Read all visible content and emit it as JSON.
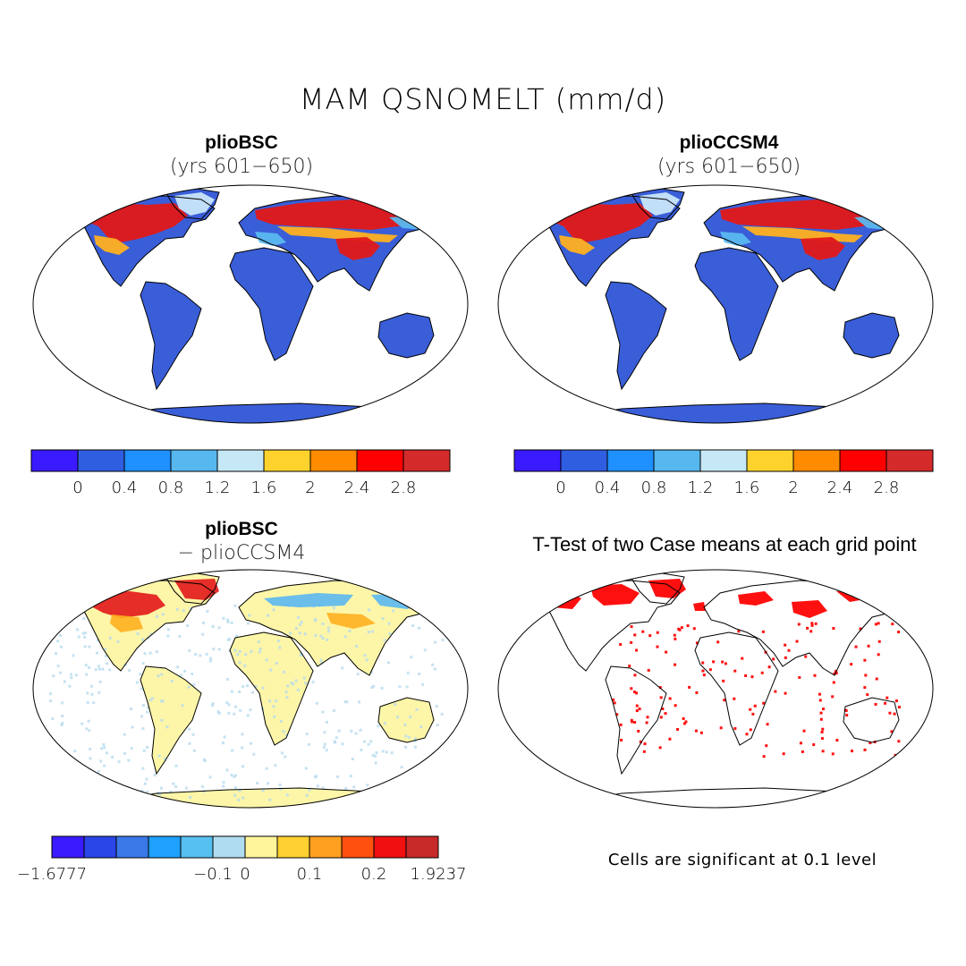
{
  "figure": {
    "title": "MAM QSNOMELT (mm/d)",
    "significance_note": "Cells are significant at 0.1 level"
  },
  "panels": [
    {
      "id": "top-left",
      "title": "plioBSC",
      "subtitle": "(yrs 601−650)",
      "kind": "absolute"
    },
    {
      "id": "top-right",
      "title": "plioCCSM4",
      "subtitle": "(yrs 601−650)",
      "kind": "absolute"
    },
    {
      "id": "bottom-left",
      "title": "plioBSC",
      "subtitle": "− plioCCSM4",
      "kind": "difference"
    },
    {
      "id": "bottom-right",
      "title": "T-Test of two Case means at each grid point",
      "subtitle": "",
      "kind": "ttest"
    }
  ],
  "colorbars": {
    "absolute": {
      "colors": [
        "#3a1aff",
        "#2f5ee0",
        "#1e90ff",
        "#56b8ee",
        "#c6e8f6",
        "#fdd22c",
        "#ff8c00",
        "#ff0000",
        "#d42a2a"
      ],
      "labels": [
        "0",
        "0.4",
        "0.8",
        "1.2",
        "1.6",
        "2",
        "2.4",
        "2.8"
      ]
    },
    "difference": {
      "colors": [
        "#3a1aff",
        "#2a45e8",
        "#3a78e8",
        "#1ea0ff",
        "#56c0f0",
        "#b0dcf0",
        "#fff59a",
        "#ffd030",
        "#ffa020",
        "#ff5010",
        "#f01010",
        "#c82a2a"
      ],
      "labels": [
        "−1.6777",
        "−0.1",
        "0",
        "0.1",
        "0.2",
        "1.9237"
      ]
    }
  },
  "colors": {
    "land_base": "#3a5ed8",
    "diff_base": "#fdf6a8",
    "diff_alt": "#b7dbee",
    "snow_hot": "#e21818",
    "snow_warm": "#ffb020",
    "snow_mid": "#5ab8f0",
    "ice": "#c8e6fa",
    "sig": "#ff1010"
  }
}
